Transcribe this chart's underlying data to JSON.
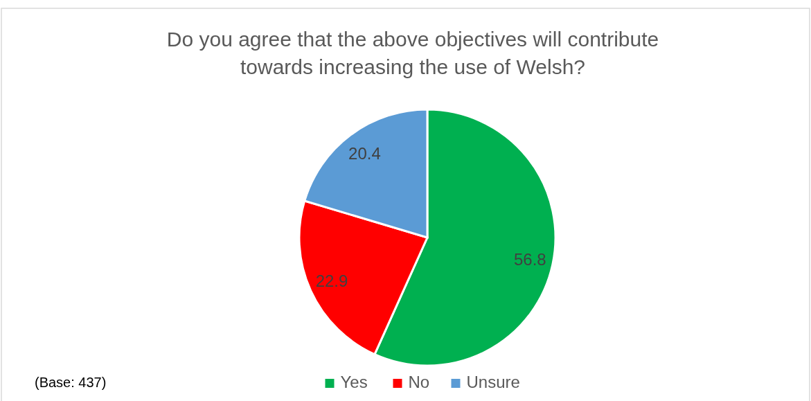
{
  "chart_data": {
    "type": "pie",
    "title": "Do you agree that the above objectives will contribute towards increasing the use of Welsh?",
    "categories": [
      "Yes",
      "No",
      "Unsure"
    ],
    "values": [
      56.8,
      22.9,
      20.4
    ],
    "colors": [
      "#00b050",
      "#ff0000",
      "#5b9bd5"
    ],
    "data_labels": true,
    "legend": "bottom",
    "annotations": [
      "(Base: 437)"
    ]
  }
}
